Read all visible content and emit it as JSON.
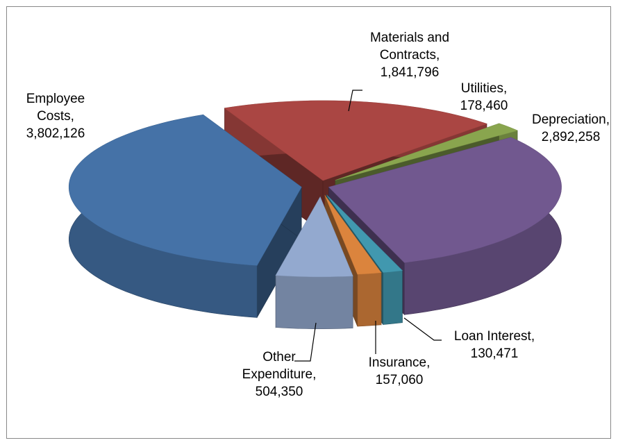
{
  "chart_data": {
    "type": "pie3d",
    "categories": [
      "Materials and Contracts",
      "Utilities",
      "Depreciation",
      "Loan Interest",
      "Insurance",
      "Other Expenditure",
      "Employee Costs"
    ],
    "values": [
      1841796,
      178460,
      2892258,
      130471,
      157060,
      504350,
      3802126
    ],
    "value_labels": [
      "1,841,796",
      "178,460",
      "2,892,258",
      "130,471",
      "157,060",
      "504,350",
      "3,802,126"
    ],
    "separator": ",",
    "colors": [
      "#aa4643",
      "#89a54e",
      "#71588f",
      "#4198af",
      "#db843d",
      "#93a9cf",
      "#4572a7"
    ]
  }
}
